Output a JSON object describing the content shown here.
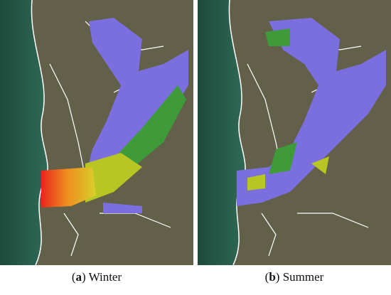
{
  "panels": [
    {
      "caption": {
        "open": "(",
        "letter": "a",
        "rest": ") Winter"
      }
    },
    {
      "caption": {
        "open": "(",
        "letter": "b",
        "rest": ") Summer"
      }
    }
  ]
}
